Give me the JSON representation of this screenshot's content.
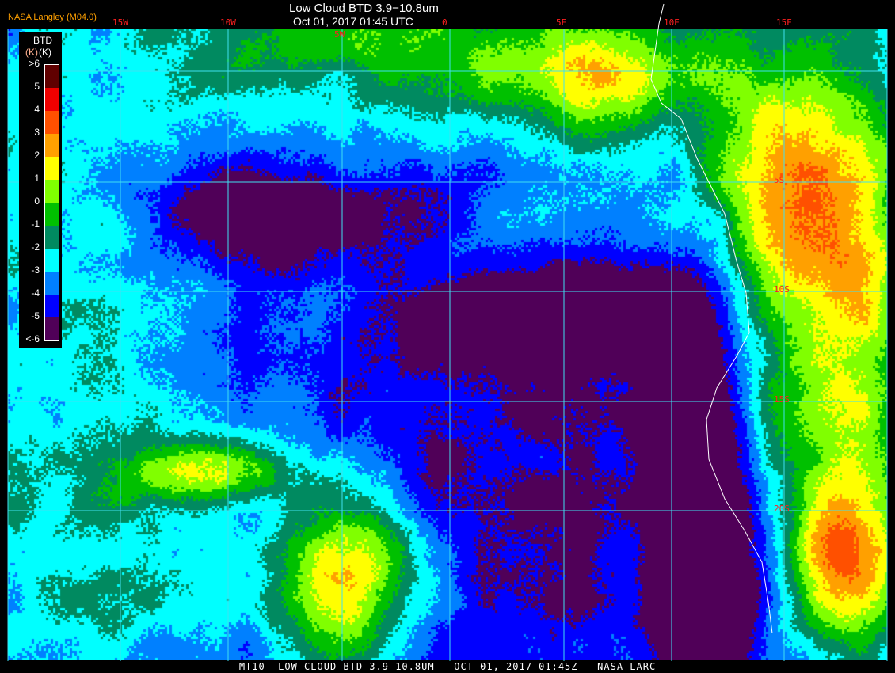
{
  "header": {
    "title": "Low Cloud BTD 3.9−10.8um",
    "datetime": "Oct 01, 2017 01:45 UTC",
    "credit": "NASA Langley (M04.0)"
  },
  "grid": {
    "longitude_labels": [
      "15W",
      "10W",
      "5W",
      "0",
      "5E",
      "10E",
      "15E"
    ],
    "latitude_labels": [
      "5S",
      "10S",
      "15S",
      "20S"
    ],
    "line_color": "#40e0f0",
    "label_color": "#ff2020"
  },
  "legend": {
    "title": "BTD",
    "unit_shadow": "(K)",
    "unit": "(K)",
    "labels": [
      ">6",
      "5",
      "4",
      "3",
      "2",
      "1",
      "0",
      "-1",
      "-2",
      "-3",
      "-4",
      "-5",
      "<-6"
    ],
    "colors": [
      "#600000",
      "#f00000",
      "#ff5000",
      "#ffa000",
      "#ffff00",
      "#80ff00",
      "#00c000",
      "#008a60",
      "#00ffff",
      "#0080ff",
      "#0000ff",
      "#500058"
    ]
  },
  "coastline_color": "#ffffff",
  "footer": {
    "text": "MT10  LOW CLOUD BTD 3.9-10.8UM   OCT 01, 2017 01:45Z   NASA LARC"
  }
}
